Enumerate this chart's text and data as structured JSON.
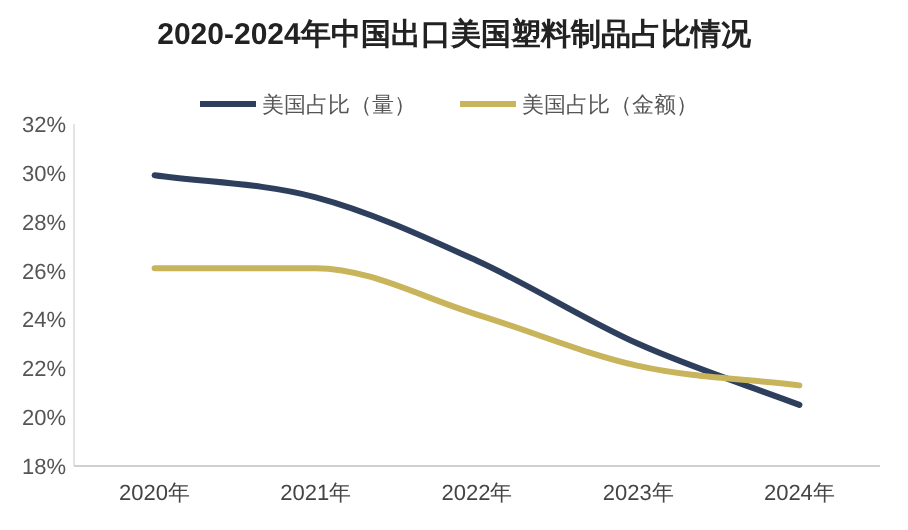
{
  "chart_data": {
    "type": "line",
    "title": "2020-2024年中国出口美国塑料制品占比情况",
    "categories": [
      "2020年",
      "2021年",
      "2022年",
      "2023年",
      "2024年"
    ],
    "series": [
      {
        "name": "美国占比（量）",
        "color": "#2e3f5e",
        "values": [
          29.9,
          29.0,
          26.4,
          23.0,
          20.5
        ]
      },
      {
        "name": "美国占比（金额）",
        "color": "#c8b45a",
        "values": [
          26.1,
          26.1,
          24.2,
          22.1,
          21.3
        ]
      }
    ],
    "ylim": [
      18,
      32
    ],
    "yticks": [
      {
        "value": 18,
        "label": "18%"
      },
      {
        "value": 20,
        "label": "20%"
      },
      {
        "value": 22,
        "label": "22%"
      },
      {
        "value": 24,
        "label": "24%"
      },
      {
        "value": 26,
        "label": "26%"
      },
      {
        "value": 28,
        "label": "28%"
      },
      {
        "value": 30,
        "label": "30%"
      },
      {
        "value": 32,
        "label": "32%"
      }
    ],
    "grid": false,
    "legend": "top",
    "marker": "none",
    "line_style": "solid"
  }
}
